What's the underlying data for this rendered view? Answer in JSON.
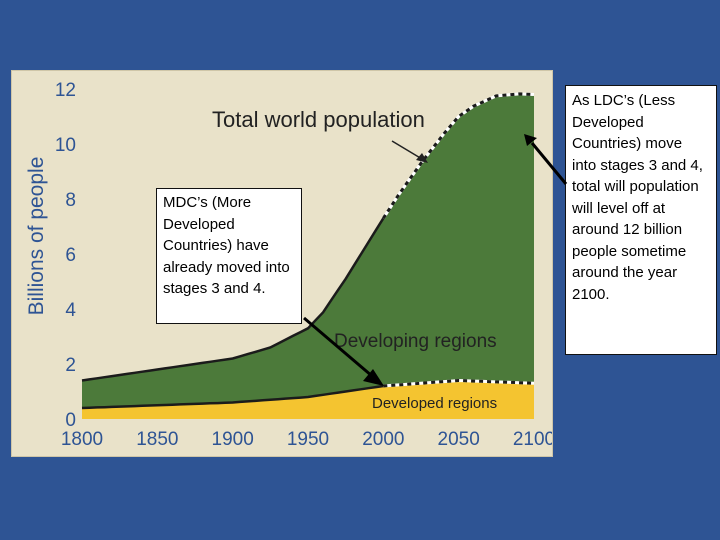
{
  "chart_data": {
    "type": "area",
    "ylabel": "Billions of people",
    "xlabel": "",
    "xlim": [
      1800,
      2100
    ],
    "ylim": [
      0,
      12
    ],
    "x_ticks": [
      1800,
      1850,
      1900,
      1950,
      2000,
      2050,
      2100
    ],
    "y_ticks": [
      0,
      2,
      4,
      6,
      8,
      10,
      12
    ],
    "stacked": true,
    "series": [
      {
        "name": "Developed regions",
        "color": "#f4c430",
        "x": [
          1800,
          1850,
          1900,
          1950,
          2000,
          2025,
          2050,
          2075,
          2100
        ],
        "values": [
          0.4,
          0.5,
          0.6,
          0.8,
          1.2,
          1.3,
          1.4,
          1.35,
          1.3
        ]
      },
      {
        "name": "Developing regions",
        "color": "#4c7a3a",
        "x": [
          1800,
          1850,
          1900,
          1925,
          1950,
          1960,
          1975,
          1990,
          2000,
          2010,
          2025,
          2040,
          2050,
          2060,
          2075,
          2090,
          2100
        ],
        "values": [
          1.0,
          1.3,
          1.6,
          1.9,
          2.5,
          3.0,
          4.1,
          5.3,
          6.1,
          6.9,
          8.0,
          9.0,
          9.6,
          10.0,
          10.4,
          10.5,
          10.5
        ]
      }
    ],
    "annotations": [
      "Total world population",
      "Developing regions",
      "Developed regions"
    ]
  },
  "callouts": {
    "mdc": "MDC’s (More Developed Countries) have already moved into stages 3 and 4.",
    "ldc": "As LDC’s (Less Developed Countries) move into stages 3 and 4, total will population will level off at around 12 billion people sometime around the year 2100."
  },
  "colors": {
    "background": "#2e5494",
    "plot_bg": "#e9e2c9",
    "developing": "#4c7a3a",
    "developed": "#f4c430",
    "axis_text": "#2e5494"
  }
}
